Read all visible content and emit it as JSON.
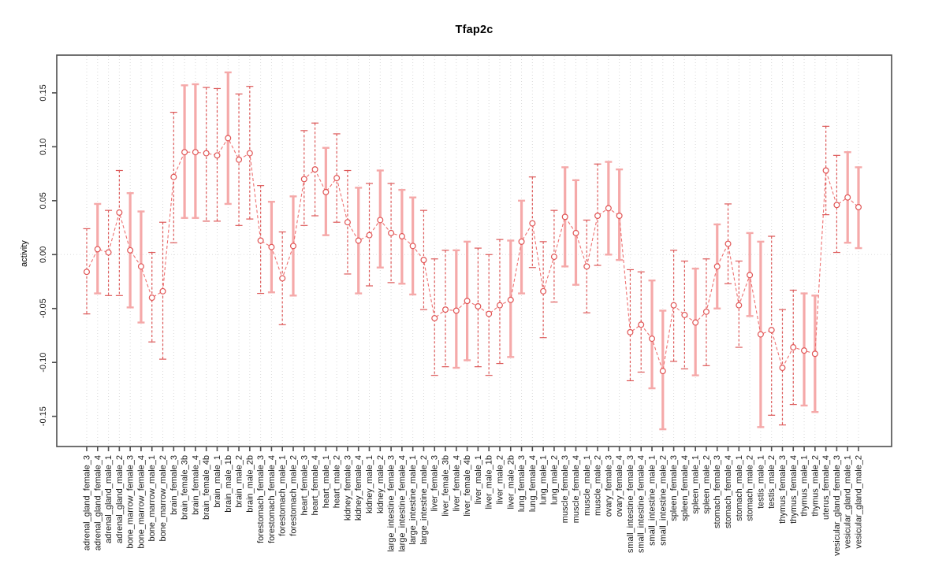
{
  "chart_data": {
    "type": "line",
    "title": "Tfap2c",
    "xlabel": "",
    "ylabel": "activity",
    "ylim": [
      -0.178,
      0.185
    ],
    "grid": "vertical-dotted",
    "legend": "none",
    "marker": "open-circle",
    "line_style": "dashed",
    "zero_line": true,
    "yticks": {
      "values": [
        -0.15,
        -0.1,
        -0.05,
        0.0,
        0.05,
        0.1,
        0.15
      ],
      "labels": [
        "-0.15",
        "-0.10",
        "-0.05",
        "0.00",
        "0.05",
        "0.10",
        "0.15"
      ]
    },
    "categories": [
      "adrenal_gland_female_3",
      "adrenal_gland_female_4",
      "adrenal_gland_male_1",
      "adrenal_gland_male_2",
      "bone_marrow_female_3",
      "bone_marrow_female_4",
      "bone_marrow_male_1",
      "bone_marrow_male_2",
      "brain_female_3",
      "brain_female_3b",
      "brain_female_4",
      "brain_female_4b",
      "brain_male_1",
      "brain_male_1b",
      "brain_male_2",
      "brain_male_2b",
      "forestomach_female_3",
      "forestomach_female_4",
      "forestomach_male_1",
      "forestomach_male_2",
      "heart_female_3",
      "heart_female_4",
      "heart_male_1",
      "heart_male_2",
      "kidney_female_3",
      "kidney_female_4",
      "kidney_male_1",
      "kidney_male_2",
      "large_intestine_female_3",
      "large_intestine_female_4",
      "large_intestine_male_1",
      "large_intestine_male_2",
      "liver_female_3",
      "liver_female_3b",
      "liver_female_4",
      "liver_female_4b",
      "liver_male_1",
      "liver_male_1b",
      "liver_male_2",
      "liver_male_2b",
      "lung_female_3",
      "lung_female_4",
      "lung_male_1",
      "lung_male_2",
      "muscle_female_3",
      "muscle_female_4",
      "muscle_male_1",
      "muscle_male_2",
      "ovary_female_3",
      "ovary_female_4",
      "small_intestine_female_3",
      "small_intestine_female_4",
      "small_intestine_male_1",
      "small_intestine_male_2",
      "spleen_female_3",
      "spleen_female_4",
      "spleen_male_1",
      "spleen_male_2",
      "stomach_female_3",
      "stomach_female_4",
      "stomach_male_1",
      "stomach_male_2",
      "testis_male_1",
      "testis_male_2",
      "thymus_female_3",
      "thymus_female_4",
      "thymus_male_1",
      "thymus_male_2",
      "uterus_female_4",
      "vesicular_gland_female_3",
      "vesicular_gland_male_1",
      "vesicular_gland_male_2"
    ],
    "series": [
      {
        "name": "activity",
        "values": [
          -0.016,
          0.005,
          0.002,
          0.039,
          0.004,
          -0.011,
          -0.04,
          -0.034,
          0.072,
          0.095,
          0.095,
          0.094,
          0.092,
          0.108,
          0.088,
          0.094,
          0.013,
          0.007,
          -0.022,
          0.008,
          0.07,
          0.079,
          0.058,
          0.071,
          0.03,
          0.013,
          0.018,
          0.032,
          0.02,
          0.017,
          0.008,
          -0.005,
          -0.059,
          -0.051,
          -0.052,
          -0.043,
          -0.048,
          -0.055,
          -0.047,
          -0.042,
          0.012,
          0.029,
          -0.034,
          -0.002,
          0.035,
          0.02,
          -0.011,
          0.036,
          0.043,
          0.036,
          -0.072,
          -0.065,
          -0.078,
          -0.108,
          -0.047,
          -0.056,
          -0.063,
          -0.053,
          -0.011,
          0.01,
          -0.047,
          -0.019,
          -0.074,
          -0.07,
          -0.105,
          -0.086,
          -0.089,
          -0.092,
          0.078,
          0.046,
          0.053,
          0.044
        ],
        "err_lo": [
          -0.055,
          -0.036,
          -0.038,
          -0.038,
          -0.049,
          -0.063,
          -0.081,
          -0.097,
          0.011,
          0.034,
          0.034,
          0.031,
          0.031,
          0.047,
          0.027,
          0.033,
          -0.036,
          -0.035,
          -0.065,
          -0.038,
          0.027,
          0.036,
          0.018,
          0.03,
          -0.018,
          -0.036,
          -0.029,
          -0.012,
          -0.026,
          -0.027,
          -0.037,
          -0.051,
          -0.112,
          -0.104,
          -0.105,
          -0.098,
          -0.104,
          -0.112,
          -0.101,
          -0.095,
          -0.036,
          -0.012,
          -0.077,
          -0.044,
          -0.011,
          -0.028,
          -0.054,
          -0.01,
          0.0,
          -0.005,
          -0.117,
          -0.109,
          -0.124,
          -0.162,
          -0.099,
          -0.106,
          -0.112,
          -0.103,
          -0.05,
          -0.027,
          -0.086,
          -0.057,
          -0.16,
          -0.149,
          -0.158,
          -0.139,
          -0.14,
          -0.146,
          0.037,
          0.002,
          0.011,
          0.006
        ],
        "err_hi": [
          0.024,
          0.047,
          0.041,
          0.078,
          0.057,
          0.04,
          0.002,
          0.03,
          0.132,
          0.157,
          0.158,
          0.155,
          0.154,
          0.169,
          0.149,
          0.156,
          0.064,
          0.049,
          0.021,
          0.054,
          0.115,
          0.122,
          0.099,
          0.112,
          0.078,
          0.062,
          0.066,
          0.078,
          0.066,
          0.06,
          0.053,
          0.041,
          -0.004,
          0.004,
          0.004,
          0.012,
          0.006,
          0.0,
          0.014,
          0.013,
          0.05,
          0.072,
          0.012,
          0.041,
          0.081,
          0.069,
          0.032,
          0.084,
          0.086,
          0.079,
          -0.014,
          -0.016,
          -0.024,
          -0.052,
          0.004,
          -0.006,
          -0.013,
          -0.004,
          0.028,
          0.047,
          -0.006,
          0.02,
          0.012,
          0.017,
          -0.051,
          -0.033,
          -0.036,
          -0.038,
          0.119,
          0.092,
          0.095,
          0.081
        ],
        "bar_thick": [
          0,
          1,
          0,
          0,
          1,
          1,
          0,
          0,
          0,
          1,
          1,
          0,
          0,
          1,
          0,
          0,
          0,
          1,
          0,
          1,
          0,
          0,
          1,
          0,
          0,
          1,
          0,
          1,
          0,
          1,
          1,
          0,
          0,
          0,
          1,
          1,
          0,
          0,
          0,
          1,
          1,
          0,
          0,
          0,
          1,
          1,
          0,
          0,
          1,
          1,
          0,
          0,
          1,
          1,
          0,
          0,
          1,
          0,
          1,
          0,
          0,
          1,
          1,
          0,
          0,
          0,
          1,
          1,
          0,
          0,
          1,
          1
        ]
      }
    ],
    "colors": {
      "point_stroke": "#e05454",
      "line": "#ee7171",
      "bar_thin": "#dd5959",
      "bar_thick": "#f5a9a9",
      "gridline": "#d9d9d9",
      "zero_line": "#dedede",
      "frame": "#4d4d4d",
      "text": "#1a1a1a"
    }
  }
}
